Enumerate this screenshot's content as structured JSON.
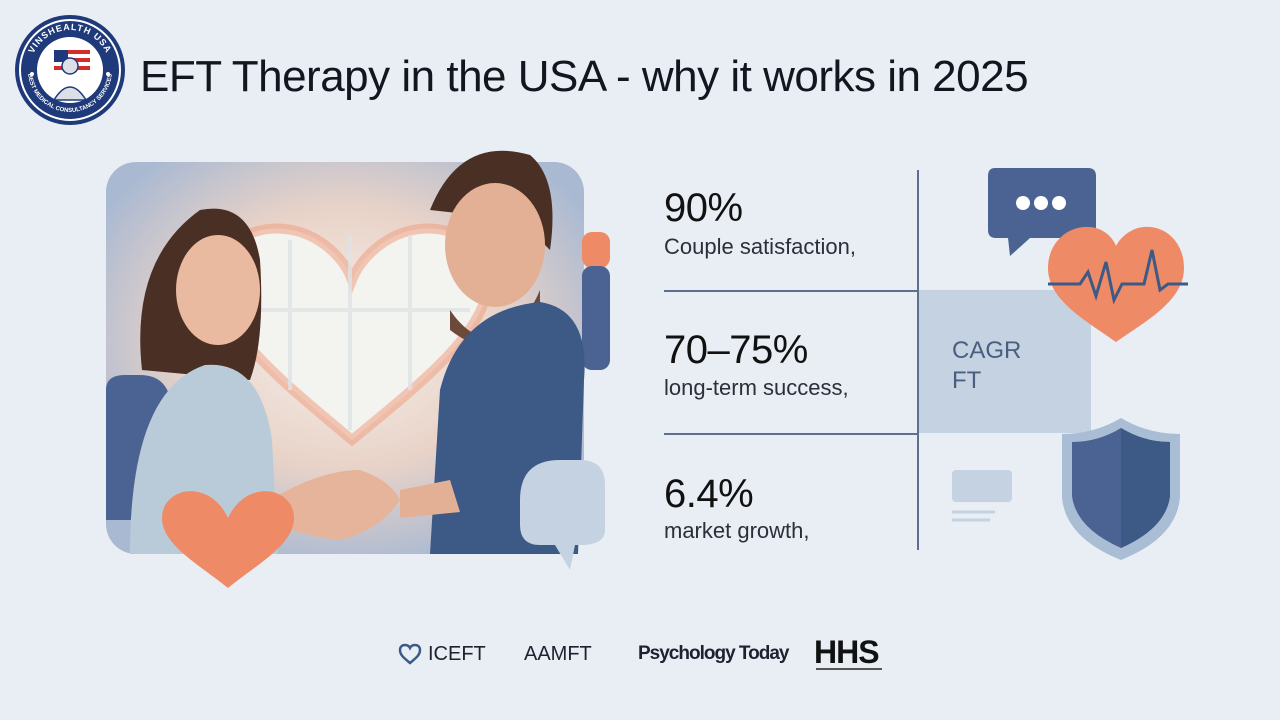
{
  "brand": {
    "ring_text_top": "VINSHEALTH USA",
    "ring_text_bottom": "BEST MEDICAL CONSULTANCY SERVICES"
  },
  "header": {
    "title": "EFT Therapy in the USA - why it works in 2025"
  },
  "stats": [
    {
      "value": "90%",
      "label": "Couple satisfaction,"
    },
    {
      "value": "70–75%",
      "label": "long-term success,"
    },
    {
      "value": "6.4%",
      "label": "market growth,"
    }
  ],
  "side_panel": {
    "line1": "CAGR",
    "line2": "FT"
  },
  "partners": {
    "iceft": "ICEFT",
    "aamft": "AAMFT",
    "psychology_today": "Psychology Today",
    "hhs": "HHS"
  },
  "colors": {
    "navy": "#4a6392",
    "coral": "#ef8a66",
    "light_blue": "#c4d2e2",
    "background": "#e8eef3"
  }
}
